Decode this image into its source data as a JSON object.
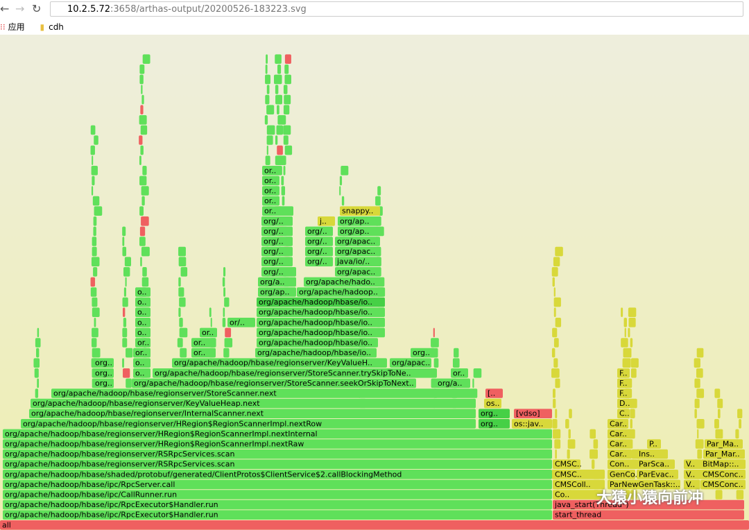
{
  "browser": {
    "url_host": "10.2.5.72",
    "url_path": ":3658/arthas-output/20200526-183223.svg",
    "bookmarks": [
      "应用",
      "cdh"
    ]
  },
  "flamegraph": {
    "frames": [
      "all",
      "org/apache/hadoop/hbase/ipc/RpcExecutor$Handler.run",
      "start_thread",
      "org/apache/hadoop/hbase/ipc/RpcExecutor$Handler.run",
      "java_start(Thread*)",
      "org/apache/hadoop/hbase/ipc/CallRunner.run",
      "Co..",
      "org/apache/hadoop/hbase/ipc/RpcServer.call",
      "CMSColl..",
      "ParNewGenTask::..",
      "V..",
      "CMSConc..",
      "org/apache/hadoop/hbase/shaded/protobuf/generated/ClientProtos$ClientService$2.callBlockingMethod",
      "CMSC..",
      "GenCo..",
      "ParEvac..",
      "V..",
      "CMSConc..",
      "org/apache/hadoop/hbase/regionserver/RSRpcServices.scan",
      "CMSC..",
      "Con..",
      "ParSca..",
      "V..",
      "BitMap::..",
      "org/apache/hadoop/hbase/regionserver/RSRpcServices.scan",
      "Car..",
      "Ins..",
      "Par_Mar..",
      "org/apache/hadoop/hbase/regionserver/HRegion$RegionScannerImpl.nextRaw",
      "Car..",
      "P..",
      "Par_Ma..",
      "org/apache/hadoop/hbase/regionserver/HRegion$RegionScannerImpl.nextInternal",
      "Car..",
      "org/apache/hadoop/hbase/regionserver/HRegion$RegionScannerImpl.nextRow",
      "org..",
      "os::jav..",
      "Car..",
      "org/apache/hadoop/hbase/regionserver/InternalScanner.next",
      "org..",
      "[vdso]",
      "C..",
      "org/apache/hadoop/hbase/regionserver/KeyValueHeap.next",
      "os..",
      "D..",
      "org/apache/hadoop/hbase/regionserver/StoreScanner.next",
      "[..",
      "F..",
      "org..",
      "org/apache/hadoop/hbase/regionserver/StoreScanner.seekOrSkipToNext..",
      "org/a..",
      "F..",
      "org..",
      "o..",
      "org/apache/hadoop/hbase/regionserver/StoreScanner.trySkipToNe..",
      "or..",
      "F..",
      "org..",
      "o..",
      "org/apache/hadoop/hbase/regionserver/KeyValueH..",
      "org/apac..",
      "or..",
      "or..",
      "org/apache/hadoop/hbase/io..",
      "org..",
      "or..",
      "or..",
      "org/apache/hadoop/hbase/io..",
      "o..",
      "or..",
      "org/apache/hadoop/hbase/io..",
      "o..",
      "or/..",
      "org/apache/hadoop/hbase/io..",
      "o..",
      "org/apache/hadoop/hbase/io..",
      "o..",
      "org/apache/hadoop/hbase/io..",
      "o..",
      "org/ap..",
      "org/apache/hadoop..",
      "org/a..",
      "org/apache/hado..",
      "org/..",
      "org/apac..",
      "org/..",
      "org/..",
      "java/io/..",
      "org/..",
      "org/..",
      "org/apac..",
      "org/..",
      "org/..",
      "org/apac..",
      "org/..",
      "org/..",
      "org/ap..",
      "org/..",
      "j..",
      "org/ap..",
      "or..",
      "snappy..",
      "or..",
      "or..",
      "or..",
      "or.."
    ]
  },
  "watermark": "大猿小猿向前冲"
}
